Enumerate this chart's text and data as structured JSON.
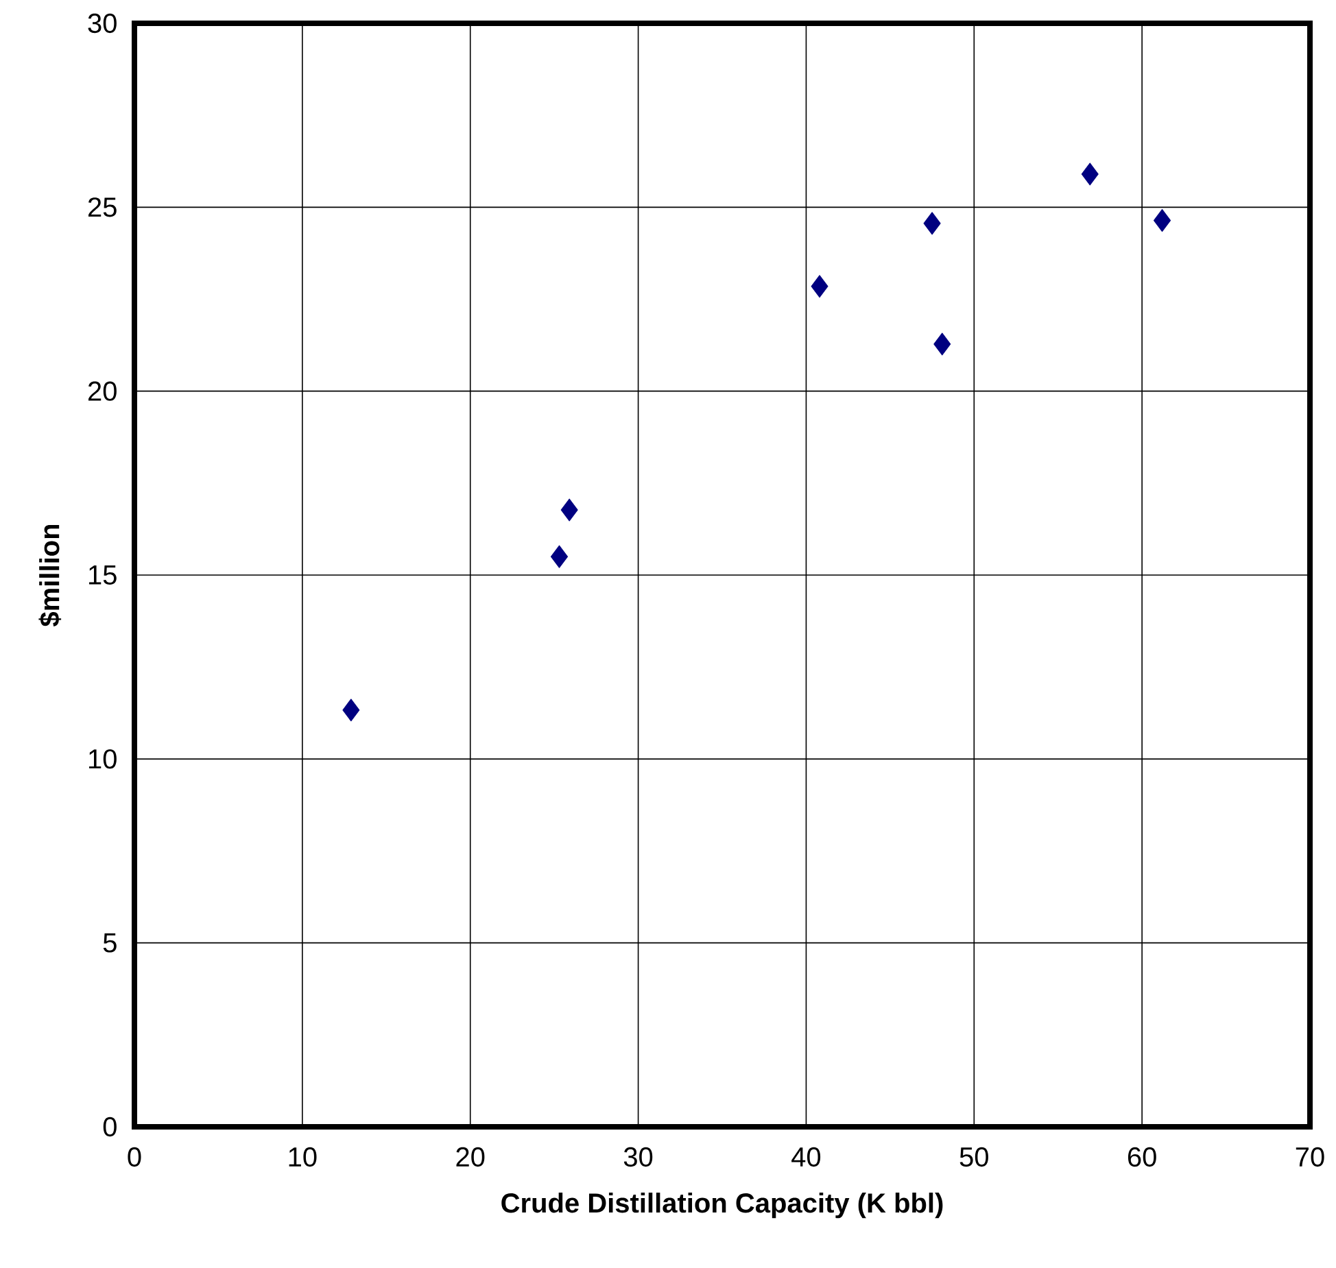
{
  "chart_data": {
    "type": "scatter",
    "xlabel": "Crude Distillation Capacity (K bbl)",
    "ylabel": "$million",
    "x": [
      12.9,
      25.3,
      25.9,
      40.8,
      47.5,
      48.1,
      56.9,
      61.2
    ],
    "series": [
      {
        "color": "#000080",
        "values": [
          11.33,
          15.5,
          16.77,
          22.85,
          24.56,
          21.28,
          25.9,
          24.64
        ]
      }
    ],
    "xlim": [
      0,
      70
    ],
    "ylim": [
      0,
      30
    ],
    "xticks": [
      0,
      10,
      20,
      30,
      40,
      50,
      60,
      70
    ],
    "yticks": [
      0,
      5,
      10,
      15,
      20,
      25,
      30
    ],
    "grid": true,
    "marker": "diamond"
  }
}
